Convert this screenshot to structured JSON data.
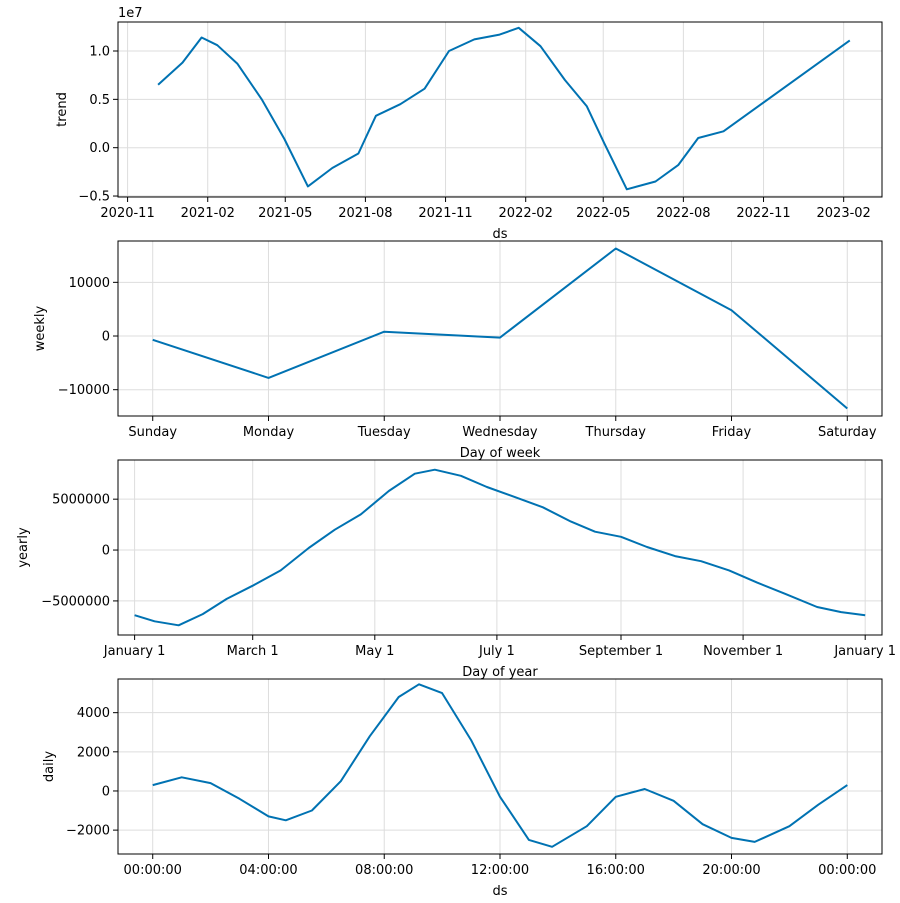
{
  "chart_data": [
    {
      "type": "line",
      "ylabel": "trend",
      "xlabel": "ds",
      "offset_label": "1e7",
      "x_type": "date",
      "xlim": [
        "2020-10-21",
        "2023-03-17"
      ],
      "ylim": [
        -0.51,
        1.3
      ],
      "xticks": [
        {
          "value": "2020-11-01",
          "label": "2020-11"
        },
        {
          "value": "2021-02-01",
          "label": "2021-02"
        },
        {
          "value": "2021-05-01",
          "label": "2021-05"
        },
        {
          "value": "2021-08-01",
          "label": "2021-08"
        },
        {
          "value": "2021-11-01",
          "label": "2021-11"
        },
        {
          "value": "2022-02-01",
          "label": "2022-02"
        },
        {
          "value": "2022-05-01",
          "label": "2022-05"
        },
        {
          "value": "2022-08-01",
          "label": "2022-08"
        },
        {
          "value": "2022-11-01",
          "label": "2022-11"
        },
        {
          "value": "2023-02-01",
          "label": "2023-02"
        }
      ],
      "yticks": [
        {
          "value": -0.5,
          "label": "−0.5"
        },
        {
          "value": 0.0,
          "label": "0.0"
        },
        {
          "value": 0.5,
          "label": "0.5"
        },
        {
          "value": 1.0,
          "label": "1.0"
        }
      ],
      "grid": true,
      "color": "#0072B2",
      "x": [
        "2020-12-06",
        "2021-01-03",
        "2021-01-25",
        "2021-02-12",
        "2021-03-07",
        "2021-04-04",
        "2021-04-30",
        "2021-05-27",
        "2021-06-24",
        "2021-07-24",
        "2021-08-13",
        "2021-09-10",
        "2021-10-08",
        "2021-11-05",
        "2021-12-04",
        "2022-01-02",
        "2022-01-24",
        "2022-02-18",
        "2022-03-18",
        "2022-04-12",
        "2022-05-02",
        "2022-05-28",
        "2022-06-30",
        "2022-07-26",
        "2022-08-18",
        "2022-09-16",
        "2023-02-08"
      ],
      "values": [
        0.65,
        0.88,
        1.14,
        1.06,
        0.87,
        0.5,
        0.09,
        -0.4,
        -0.21,
        -0.06,
        0.33,
        0.45,
        0.61,
        1.0,
        1.12,
        1.17,
        1.24,
        1.05,
        0.7,
        0.43,
        0.05,
        -0.43,
        -0.35,
        -0.18,
        0.1,
        0.17,
        1.11
      ]
    },
    {
      "type": "line",
      "ylabel": "weekly",
      "xlabel": "Day of week",
      "x_type": "category",
      "categories": [
        "Sunday",
        "Monday",
        "Tuesday",
        "Wednesday",
        "Thursday",
        "Friday",
        "Saturday"
      ],
      "ylim": [
        -14900,
        17700
      ],
      "yticks": [
        {
          "value": -10000,
          "label": "−10000"
        },
        {
          "value": 0,
          "label": "0"
        },
        {
          "value": 10000,
          "label": "10000"
        }
      ],
      "grid": true,
      "color": "#0072B2",
      "values": [
        -700,
        -7800,
        800,
        -300,
        16300,
        4800,
        -13500
      ]
    },
    {
      "type": "line",
      "ylabel": "yearly",
      "xlabel": "Day of year",
      "x_type": "numeric",
      "xlim": [
        -8.3,
        373.4
      ],
      "ylim": [
        -8350000,
        8850000
      ],
      "xticks": [
        {
          "value": 0,
          "label": "January 1"
        },
        {
          "value": 59,
          "label": "March 1"
        },
        {
          "value": 120,
          "label": "May 1"
        },
        {
          "value": 181,
          "label": "July 1"
        },
        {
          "value": 243,
          "label": "September 1"
        },
        {
          "value": 304,
          "label": "November 1"
        },
        {
          "value": 365,
          "label": "January 1"
        }
      ],
      "yticks": [
        {
          "value": -5000000,
          "label": "−5000000"
        },
        {
          "value": 0,
          "label": "0"
        },
        {
          "value": 5000000,
          "label": "5000000"
        }
      ],
      "grid": true,
      "color": "#0072B2",
      "x": [
        0,
        10,
        22,
        34,
        46,
        59,
        73,
        87,
        100,
        113,
        127,
        140,
        150,
        163,
        176,
        190,
        204,
        218,
        230,
        243,
        256,
        270,
        283,
        297,
        311,
        325,
        341,
        353,
        365
      ],
      "values": [
        -6400000,
        -7000000,
        -7400000,
        -6300000,
        -4800000,
        -3500000,
        -2000000,
        200000,
        2000000,
        3500000,
        5800000,
        7500000,
        7900000,
        7300000,
        6200000,
        5200000,
        4200000,
        2800000,
        1800000,
        1300000,
        300000,
        -600000,
        -1100000,
        -2000000,
        -3200000,
        -4300000,
        -5600000,
        -6100000,
        -6400000
      ]
    },
    {
      "type": "line",
      "ylabel": "daily",
      "xlabel": "ds",
      "x_type": "hours",
      "xlim": [
        -1.2,
        25.2
      ],
      "ylim": [
        -3220,
        5720
      ],
      "xticks": [
        {
          "value": 0,
          "label": "00:00:00"
        },
        {
          "value": 4,
          "label": "04:00:00"
        },
        {
          "value": 8,
          "label": "08:00:00"
        },
        {
          "value": 12,
          "label": "12:00:00"
        },
        {
          "value": 16,
          "label": "16:00:00"
        },
        {
          "value": 20,
          "label": "20:00:00"
        },
        {
          "value": 24,
          "label": "00:00:00"
        }
      ],
      "yticks": [
        {
          "value": -2000,
          "label": "−2000"
        },
        {
          "value": 0,
          "label": "0"
        },
        {
          "value": 2000,
          "label": "2000"
        },
        {
          "value": 4000,
          "label": "4000"
        }
      ],
      "grid": true,
      "color": "#0072B2",
      "x": [
        0,
        1,
        2,
        3,
        4,
        4.6,
        5.5,
        6.5,
        7.5,
        8.5,
        9.2,
        10,
        11,
        12,
        13,
        13.8,
        15,
        16,
        17,
        18,
        19,
        20,
        20.8,
        22,
        23,
        24
      ],
      "values": [
        300,
        700,
        400,
        -400,
        -1300,
        -1500,
        -1000,
        500,
        2800,
        4800,
        5450,
        5000,
        2600,
        -300,
        -2500,
        -2850,
        -1800,
        -300,
        100,
        -500,
        -1700,
        -2400,
        -2600,
        -1800,
        -700,
        300
      ]
    }
  ]
}
